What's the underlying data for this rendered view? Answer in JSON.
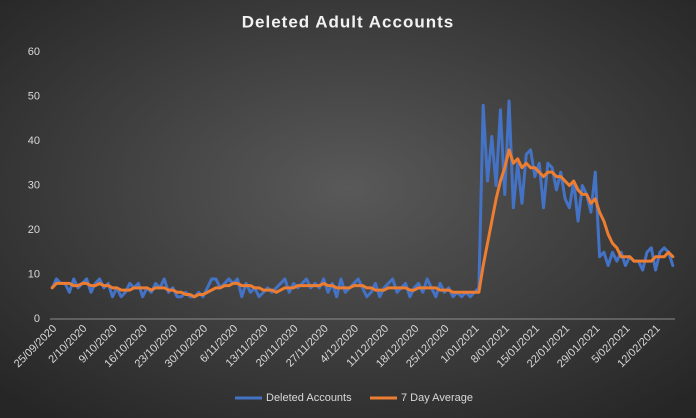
{
  "chart_data": {
    "type": "line",
    "title": "Deleted Adult Accounts",
    "categories": [
      "25/09/2020",
      null,
      null,
      null,
      null,
      null,
      null,
      "2/10/2020",
      null,
      null,
      null,
      null,
      null,
      null,
      "9/10/2020",
      null,
      null,
      null,
      null,
      null,
      null,
      "16/10/2020",
      null,
      null,
      null,
      null,
      null,
      null,
      "23/10/2020",
      null,
      null,
      null,
      null,
      null,
      null,
      "30/10/2020",
      null,
      null,
      null,
      null,
      null,
      null,
      "6/11/2020",
      null,
      null,
      null,
      null,
      null,
      null,
      "13/11/2020",
      null,
      null,
      null,
      null,
      null,
      null,
      "20/11/2020",
      null,
      null,
      null,
      null,
      null,
      null,
      "27/11/2020",
      null,
      null,
      null,
      null,
      null,
      null,
      "4/12/2020",
      null,
      null,
      null,
      null,
      null,
      null,
      "11/12/2020",
      null,
      null,
      null,
      null,
      null,
      null,
      "18/12/2020",
      null,
      null,
      null,
      null,
      null,
      null,
      "25/12/2020",
      null,
      null,
      null,
      null,
      null,
      null,
      "1/01/2021",
      null,
      null,
      null,
      null,
      null,
      null,
      "8/01/2021",
      null,
      null,
      null,
      null,
      null,
      null,
      "15/01/2021",
      null,
      null,
      null,
      null,
      null,
      null,
      "22/01/2021",
      null,
      null,
      null,
      null,
      null,
      null,
      "29/01/2021",
      null,
      null,
      null,
      null,
      null,
      null,
      "5/02/2021",
      null,
      null,
      null,
      null,
      null,
      null,
      "12/02/2021",
      null,
      null,
      null,
      null
    ],
    "series": [
      {
        "name": "Deleted Accounts",
        "color": "#4472c4",
        "values": [
          7,
          9,
          8,
          8,
          6,
          9,
          7,
          8,
          9,
          6,
          8,
          9,
          7,
          8,
          5,
          7,
          5,
          6,
          8,
          7,
          8,
          5,
          7,
          6,
          8,
          7,
          9,
          6,
          7,
          5,
          5,
          6,
          5,
          5,
          6,
          5,
          7,
          9,
          9,
          7,
          8,
          9,
          8,
          9,
          5,
          8,
          6,
          7,
          5,
          6,
          7,
          6,
          7,
          8,
          9,
          6,
          8,
          7,
          8,
          9,
          7,
          8,
          7,
          9,
          6,
          8,
          5,
          9,
          6,
          7,
          8,
          9,
          7,
          5,
          6,
          8,
          5,
          7,
          8,
          9,
          6,
          7,
          8,
          5,
          7,
          8,
          6,
          9,
          7,
          5,
          8,
          6,
          7,
          5,
          6,
          5,
          6,
          5,
          6,
          7,
          48,
          31,
          41,
          30,
          47,
          28,
          49,
          25,
          35,
          26,
          37,
          38,
          32,
          35,
          25,
          35,
          34,
          29,
          33,
          27,
          25,
          31,
          22,
          30,
          28,
          24,
          33,
          14,
          15,
          12,
          15,
          13,
          15,
          12,
          14,
          13,
          13,
          11,
          15,
          16,
          11,
          15,
          16,
          15,
          12
        ]
      },
      {
        "name": "7 Day Average",
        "color": "#ed7d31",
        "values": [
          7,
          8,
          8,
          8,
          8,
          7.5,
          7.5,
          8,
          8,
          7.5,
          7.5,
          8,
          7.5,
          7.5,
          7,
          7,
          6.5,
          6.5,
          6.5,
          7,
          7,
          7,
          7,
          6.5,
          7,
          7,
          7,
          6.5,
          6.5,
          6,
          6,
          5.5,
          5.5,
          5,
          5.5,
          5.5,
          6,
          6.5,
          7,
          7,
          7.5,
          7.5,
          8,
          8,
          7.5,
          7.5,
          7.5,
          7,
          7,
          6.5,
          6.5,
          6.5,
          6,
          6.5,
          7,
          7,
          7,
          7.5,
          7.5,
          7.5,
          7.5,
          7.5,
          7.5,
          8,
          7.5,
          7.5,
          7,
          7,
          7,
          7,
          7.5,
          7.5,
          7.5,
          7,
          7,
          6.5,
          6.5,
          6.5,
          7,
          7,
          7,
          7,
          7,
          6.5,
          6.5,
          7,
          7,
          7,
          7,
          7,
          6.5,
          6.5,
          6.5,
          6,
          6,
          6,
          6,
          6,
          6,
          6,
          12,
          17,
          22,
          27,
          31,
          34,
          38,
          35,
          36,
          34,
          35,
          34,
          34,
          33,
          32,
          33,
          33,
          32,
          32,
          31,
          30,
          31,
          29,
          28,
          28,
          26,
          27,
          24,
          22,
          19,
          17,
          16,
          14,
          14,
          14,
          13,
          13,
          13,
          13,
          13,
          14,
          14,
          14,
          15,
          14
        ]
      }
    ],
    "ylim": [
      0,
      60
    ],
    "yticks": [
      0,
      10,
      20,
      30,
      40,
      50,
      60
    ],
    "grid": false,
    "legend": "bottom"
  }
}
